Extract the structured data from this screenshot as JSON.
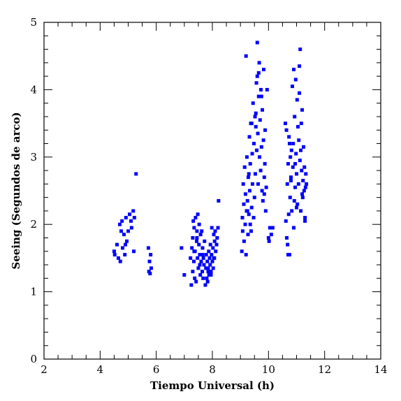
{
  "chart_data": {
    "type": "scatter",
    "xlabel": "Tiempo Universal (h)",
    "ylabel": "Seeing (Segundos de arco)",
    "xlim": [
      2,
      14
    ],
    "ylim": [
      0,
      5
    ],
    "x_ticks": [
      "2",
      "4",
      "6",
      "8",
      "10",
      "12",
      "14"
    ],
    "y_ticks": [
      "0",
      "1",
      "2",
      "3",
      "4",
      "5"
    ],
    "grid": false,
    "marker_color": "#0000ff",
    "series": [
      {
        "x": [
          4.5,
          4.52,
          4.6,
          4.65,
          4.7,
          4.72,
          4.75,
          4.78,
          4.8,
          4.85,
          4.88,
          4.9,
          4.92,
          4.95,
          5.0,
          5.05,
          5.1,
          5.12,
          5.18,
          5.2,
          5.22,
          5.28,
          5.72,
          5.74,
          5.76,
          5.78,
          5.8,
          5.82,
          6.9,
          7.0,
          7.22,
          7.25,
          7.27,
          7.3,
          7.3,
          7.32,
          7.34,
          7.35,
          7.37,
          7.38,
          7.4,
          7.42,
          7.44,
          7.45,
          7.47,
          7.48,
          7.5,
          7.52,
          7.53,
          7.55,
          7.57,
          7.58,
          7.6,
          7.62,
          7.64,
          7.65,
          7.67,
          7.68,
          7.7,
          7.72,
          7.75,
          7.77,
          7.78,
          7.8,
          7.82,
          7.83,
          7.85,
          7.87,
          7.88,
          7.9,
          7.92,
          7.93,
          7.95,
          7.97,
          7.98,
          8.0,
          8.02,
          8.03,
          8.05,
          8.07,
          8.08,
          8.1,
          8.12,
          8.15,
          8.17,
          8.2,
          8.22,
          7.35,
          7.45,
          7.55,
          7.65,
          7.85,
          7.95,
          8.05,
          9.05,
          9.07,
          9.08,
          9.1,
          9.12,
          9.13,
          9.15,
          9.17,
          9.18,
          9.2,
          9.22,
          9.23,
          9.25,
          9.27,
          9.28,
          9.3,
          9.32,
          9.33,
          9.35,
          9.37,
          9.38,
          9.4,
          9.42,
          9.43,
          9.45,
          9.47,
          9.48,
          9.5,
          9.52,
          9.53,
          9.55,
          9.57,
          9.58,
          9.6,
          9.62,
          9.63,
          9.65,
          9.67,
          9.68,
          9.7,
          9.72,
          9.73,
          9.75,
          9.77,
          9.78,
          9.8,
          9.82,
          9.83,
          9.85,
          9.87,
          9.88,
          9.9,
          9.92,
          9.95,
          10.0,
          10.02,
          10.05,
          10.1,
          10.15,
          9.2,
          9.3,
          9.4,
          9.55,
          9.65,
          9.75,
          9.85,
          9.25,
          9.35,
          9.6,
          10.6,
          10.62,
          10.64,
          10.65,
          10.67,
          10.68,
          10.7,
          10.72,
          10.73,
          10.75,
          10.77,
          10.78,
          10.8,
          10.82,
          10.83,
          10.85,
          10.87,
          10.88,
          10.9,
          10.92,
          10.93,
          10.95,
          10.97,
          10.98,
          11.0,
          11.02,
          11.03,
          11.05,
          11.07,
          11.08,
          11.1,
          11.12,
          11.13,
          11.15,
          11.17,
          11.18,
          11.2,
          11.22,
          11.23,
          11.25,
          11.27,
          11.28,
          11.3,
          11.32,
          11.33,
          11.35,
          10.7,
          10.8,
          10.9,
          11.0,
          11.1,
          11.2,
          11.3,
          10.75,
          10.95,
          11.15
        ],
        "y": [
          1.6,
          1.55,
          1.7,
          1.5,
          2.0,
          1.45,
          1.9,
          2.05,
          1.65,
          1.85,
          1.55,
          1.7,
          2.1,
          1.75,
          1.9,
          2.15,
          2.05,
          1.95,
          2.2,
          1.6,
          2.1,
          2.75,
          1.65,
          1.3,
          1.45,
          1.27,
          1.55,
          1.35,
          1.65,
          1.25,
          1.5,
          1.1,
          1.65,
          1.8,
          1.3,
          2.05,
          1.45,
          1.95,
          1.2,
          1.6,
          2.1,
          1.15,
          1.75,
          1.9,
          1.5,
          2.15,
          1.35,
          1.7,
          2.0,
          1.55,
          1.25,
          1.85,
          1.45,
          1.9,
          1.3,
          1.65,
          1.2,
          1.5,
          1.4,
          1.75,
          1.1,
          1.35,
          1.55,
          1.2,
          1.45,
          1.15,
          1.3,
          1.6,
          1.25,
          1.5,
          1.4,
          1.7,
          1.3,
          1.55,
          1.95,
          1.45,
          1.65,
          1.35,
          1.85,
          1.5,
          1.75,
          1.9,
          1.6,
          1.7,
          1.8,
          1.95,
          2.35,
          1.6,
          1.8,
          1.4,
          1.55,
          1.35,
          1.25,
          1.5,
          1.6,
          2.1,
          1.9,
          2.6,
          2.3,
          1.75,
          2.85,
          2.0,
          2.45,
          1.55,
          2.2,
          3.0,
          2.35,
          1.85,
          2.7,
          2.15,
          3.3,
          2.5,
          2.0,
          3.5,
          1.9,
          2.25,
          3.05,
          2.6,
          3.8,
          2.1,
          3.2,
          2.4,
          3.6,
          2.75,
          3.45,
          4.1,
          3.1,
          4.7,
          3.35,
          2.6,
          3.9,
          4.4,
          3.0,
          3.55,
          2.8,
          4.0,
          3.15,
          2.5,
          3.7,
          2.35,
          3.25,
          4.3,
          2.7,
          2.9,
          3.4,
          2.2,
          2.55,
          4.0,
          1.8,
          1.75,
          1.95,
          1.85,
          1.95,
          4.5,
          2.75,
          3.5,
          3.65,
          4.25,
          3.9,
          2.45,
          2.2,
          2.9,
          4.2,
          3.5,
          2.05,
          3.4,
          1.8,
          2.6,
          1.7,
          2.9,
          2.15,
          3.3,
          1.55,
          2.4,
          3.0,
          2.7,
          3.1,
          2.2,
          4.05,
          2.85,
          3.2,
          4.3,
          2.35,
          3.6,
          2.55,
          4.15,
          3.05,
          2.75,
          3.85,
          2.3,
          3.45,
          2.6,
          3.25,
          4.35,
          2.95,
          4.6,
          2.2,
          3.5,
          2.8,
          3.7,
          2.4,
          2.65,
          3.15,
          2.5,
          2.85,
          2.1,
          2.55,
          2.75,
          2.6,
          1.55,
          2.65,
          1.95,
          2.25,
          3.95,
          2.45,
          2.05,
          3.2,
          2.9,
          3.1
        ]
      }
    ]
  }
}
